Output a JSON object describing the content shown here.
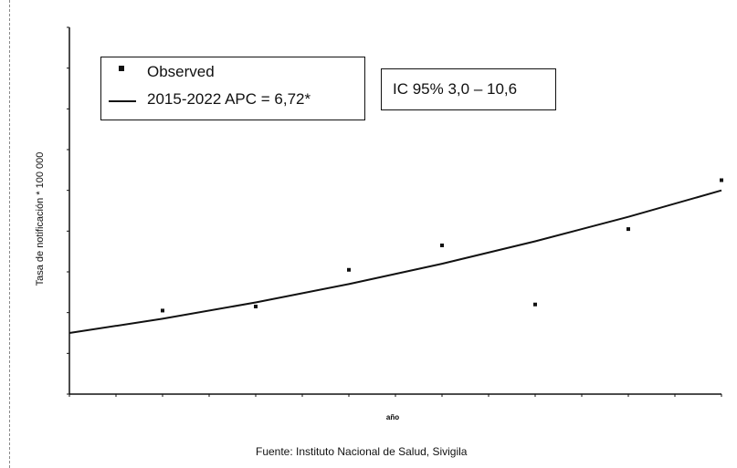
{
  "chart_data": {
    "type": "scatter",
    "xlabel": "año",
    "ylabel": "Tasa de notificación * 100 000",
    "xlim": [
      2015,
      2022
    ],
    "ylim": [
      14,
      32
    ],
    "grid": false,
    "legend_position": "top-left",
    "series": [
      {
        "name": "Observed",
        "kind": "points",
        "x": [
          2016,
          2017,
          2018,
          2019,
          2020,
          2021,
          2022
        ],
        "y": [
          18.1,
          18.3,
          20.1,
          21.3,
          18.4,
          22.1,
          24.5
        ]
      },
      {
        "name": "2015-2022 APC = 6,72*",
        "kind": "line",
        "x": [
          2015,
          2016,
          2017,
          2018,
          2019,
          2020,
          2021,
          2022
        ],
        "y": [
          17.0,
          17.7,
          18.5,
          19.4,
          20.4,
          21.5,
          22.7,
          24.0
        ]
      }
    ]
  },
  "legend": {
    "observed_label": "Observed",
    "fit_label": "2015-2022 APC  = 6,72*"
  },
  "ci_box": {
    "text": "IC 95% 3,0 – 10,6"
  },
  "source": "Fuente: Instituto Nacional de Salud, Sivigila"
}
